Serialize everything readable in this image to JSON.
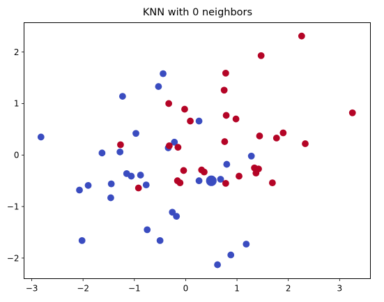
{
  "chart_data": {
    "type": "scatter",
    "title": "KNN with 0 neighbors",
    "xlabel": "",
    "ylabel": "",
    "xlim": [
      -3.15,
      3.6
    ],
    "ylim": [
      -2.4,
      2.57
    ],
    "xticks": [
      -3,
      -2,
      -1,
      0,
      1,
      2,
      3
    ],
    "yticks": [
      -2,
      -1,
      0,
      1,
      2
    ],
    "grid": false,
    "colors": {
      "class_0": "#3a4cc0",
      "class_1": "#b40426"
    },
    "series": [
      {
        "class": 0,
        "color": "#3a4cc0",
        "points": [
          [
            -2.82,
            0.35
          ],
          [
            -2.07,
            -0.68
          ],
          [
            -2.02,
            -1.66
          ],
          [
            -1.9,
            -0.59
          ],
          [
            -1.63,
            0.04
          ],
          [
            -1.45,
            -0.56
          ],
          [
            -1.46,
            -0.83
          ],
          [
            -1.28,
            0.06
          ],
          [
            -1.23,
            1.14
          ],
          [
            -1.15,
            -0.36
          ],
          [
            -1.06,
            -0.41
          ],
          [
            -0.97,
            0.42
          ],
          [
            -0.88,
            -0.39
          ],
          [
            -0.77,
            -0.58
          ],
          [
            -0.75,
            -1.45
          ],
          [
            -0.53,
            1.33
          ],
          [
            -0.5,
            -1.66
          ],
          [
            -0.44,
            1.58
          ],
          [
            -0.34,
            0.14
          ],
          [
            -0.26,
            -1.11
          ],
          [
            -0.22,
            0.25
          ],
          [
            -0.18,
            -1.19
          ],
          [
            0.26,
            0.66
          ],
          [
            0.26,
            -0.5
          ],
          [
            0.62,
            -2.13
          ],
          [
            0.68,
            -0.47
          ],
          [
            0.8,
            -0.18
          ],
          [
            0.88,
            -1.94
          ],
          [
            1.18,
            -1.73
          ],
          [
            1.28,
            -0.02
          ]
        ]
      },
      {
        "class": 1,
        "color": "#b40426",
        "points": [
          [
            -1.27,
            0.2
          ],
          [
            -0.92,
            -0.64
          ],
          [
            -0.33,
            1.0
          ],
          [
            -0.32,
            0.18
          ],
          [
            -0.15,
            0.15
          ],
          [
            -0.16,
            -0.5
          ],
          [
            -0.11,
            -0.54
          ],
          [
            -0.04,
            -0.3
          ],
          [
            -0.02,
            0.89
          ],
          [
            0.09,
            0.66
          ],
          [
            0.31,
            -0.29
          ],
          [
            0.36,
            -0.33
          ],
          [
            0.75,
            1.26
          ],
          [
            0.76,
            0.26
          ],
          [
            0.78,
            -0.55
          ],
          [
            0.78,
            1.59
          ],
          [
            0.79,
            0.77
          ],
          [
            0.98,
            0.7
          ],
          [
            1.04,
            -0.41
          ],
          [
            1.34,
            -0.25
          ],
          [
            1.37,
            -0.35
          ],
          [
            1.42,
            -0.27
          ],
          [
            1.44,
            0.37
          ],
          [
            1.47,
            1.93
          ],
          [
            1.69,
            -0.54
          ],
          [
            1.77,
            0.33
          ],
          [
            1.9,
            0.43
          ],
          [
            2.26,
            2.31
          ],
          [
            2.33,
            0.22
          ],
          [
            3.25,
            0.82
          ]
        ]
      }
    ],
    "query_point": {
      "x": 0.5,
      "y": -0.5,
      "color": "#3a4cc0"
    }
  }
}
